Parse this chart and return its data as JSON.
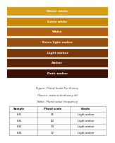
{
  "title": "Figure. Pfund Scale For Honey",
  "subtitle": "(Source: www.oxfordhoney.uk)",
  "table_title": "Table. Pfund value frequency",
  "bar_colors": [
    "#D4A017",
    "#C8860A",
    "#B06010",
    "#985010",
    "#7A3808",
    "#5A2508",
    "#3A1205"
  ],
  "bar_labels": [
    "Water white",
    "Extra white",
    "White",
    "Extra light amber",
    "Light amber",
    "Amber",
    "Dark amber"
  ],
  "table_headers": [
    "Sample",
    "Pfund scale",
    "Grade"
  ],
  "table_rows": [
    [
      "LH1",
      "35",
      "Light amber"
    ],
    [
      "LH2",
      "43",
      "Light amber"
    ],
    [
      "LH3",
      "74",
      "Light amber"
    ],
    [
      "LH4",
      "72",
      "Light amber"
    ]
  ],
  "bg_color": "#ffffff",
  "bar_height": 0.11,
  "bar_gap": 0.025
}
